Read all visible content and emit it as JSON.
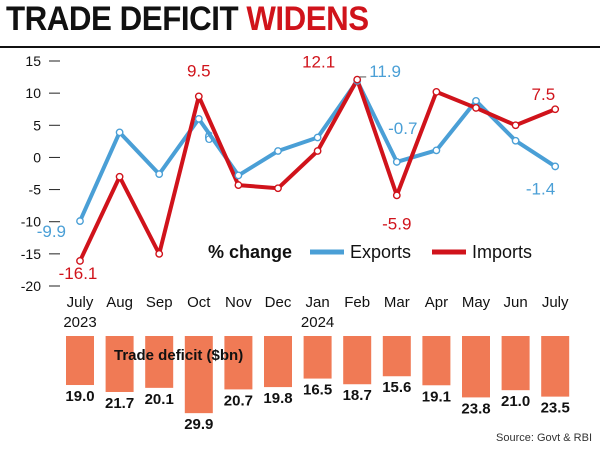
{
  "title": {
    "part1": "TRADE DEFICIT",
    "part2": "WIDENS"
  },
  "source": "Source: Govt & RBI",
  "colors": {
    "exports": "#4a9fd6",
    "imports": "#d0131b",
    "deficit_bar": "#f07a55",
    "accent": "#d0131b"
  },
  "chart_data": [
    {
      "type": "line",
      "categories": [
        "July",
        "Aug",
        "Sep",
        "Oct",
        "Nov",
        "Dec",
        "Jan",
        "Feb",
        "Mar",
        "Apr",
        "May",
        "Jun",
        "July"
      ],
      "year_labels": [
        {
          "index": 0,
          "label": "2023"
        },
        {
          "index": 6,
          "label": "2024"
        }
      ],
      "legend_title": "% change",
      "legend_position": "bottom-right",
      "ylim": [
        -20,
        15
      ],
      "yticks": [
        15,
        10,
        5,
        0,
        -5,
        -10,
        -15,
        -20
      ],
      "grid": false,
      "series": [
        {
          "name": "Exports",
          "values": [
            -9.9,
            3.9,
            -2.6,
            6,
            -2.8,
            1.0,
            3.1,
            11.9,
            -0.7,
            1.1,
            8.8,
            2.6,
            -1.4
          ]
        },
        {
          "name": "Imports",
          "values": [
            -16.1,
            -3.0,
            -15.0,
            9.5,
            -4.3,
            -4.8,
            1.0,
            12.1,
            -5.9,
            10.2,
            7.7,
            5.0,
            7.5
          ]
        }
      ],
      "annotations": [
        {
          "series": "Exports",
          "index": 0,
          "text": "-9.9"
        },
        {
          "series": "Imports",
          "index": 0,
          "text": "-16.1"
        },
        {
          "series": "Imports",
          "index": 3,
          "text": "9.5"
        },
        {
          "series": "Exports",
          "index": 3,
          "text": "6"
        },
        {
          "series": "Imports",
          "index": 7,
          "text": "12.1"
        },
        {
          "series": "Exports",
          "index": 7,
          "text": "11.9"
        },
        {
          "series": "Exports",
          "index": 8,
          "text": "-0.7"
        },
        {
          "series": "Imports",
          "index": 8,
          "text": "-5.9"
        },
        {
          "series": "Imports",
          "index": 12,
          "text": "7.5"
        },
        {
          "series": "Exports",
          "index": 12,
          "text": "-1.4"
        }
      ]
    },
    {
      "type": "bar",
      "title": "Trade deficit ($bn)",
      "categories": [
        "July 2023",
        "Aug",
        "Sep",
        "Oct",
        "Nov",
        "Dec",
        "Jan 2024",
        "Feb",
        "Mar",
        "Apr",
        "May",
        "Jun",
        "July"
      ],
      "values": [
        19.0,
        21.7,
        20.1,
        29.9,
        20.7,
        19.8,
        16.5,
        18.7,
        15.6,
        19.1,
        23.8,
        21.0,
        23.5
      ],
      "value_labels": [
        "19.0",
        "21.7",
        "20.1",
        "29.9",
        "20.7",
        "19.8",
        "16.5",
        "18.7",
        "15.6",
        "19.1",
        "23.8",
        "21.0",
        "23.5"
      ]
    }
  ]
}
